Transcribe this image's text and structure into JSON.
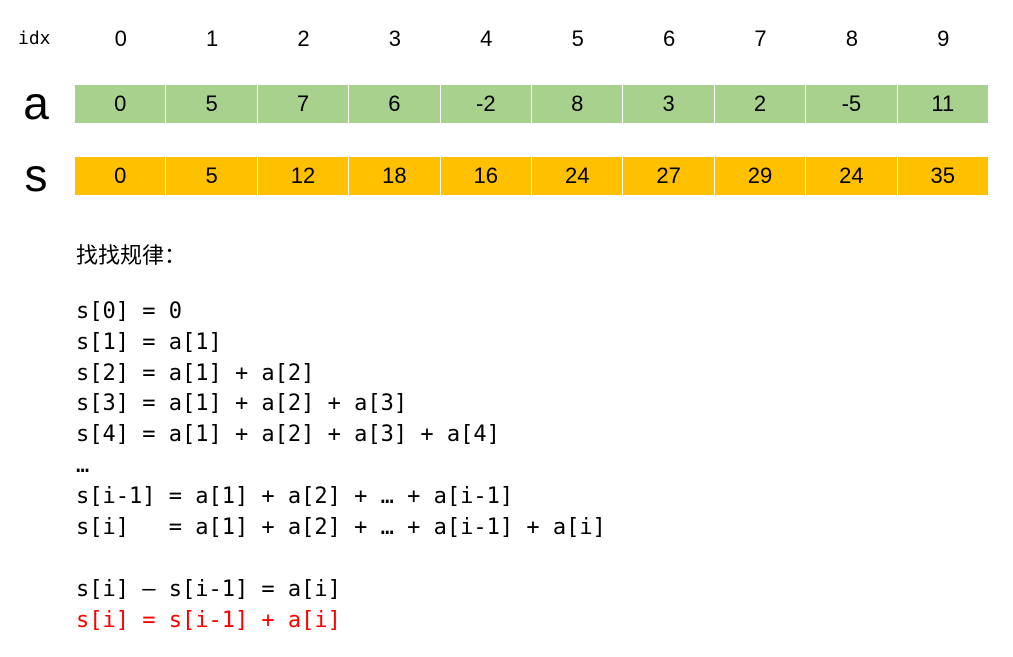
{
  "header": {
    "label": "idx",
    "indices": [
      0,
      1,
      2,
      3,
      4,
      5,
      6,
      7,
      8,
      9
    ]
  },
  "rows": [
    {
      "name": "a",
      "color": "#a9d18e",
      "values": [
        0,
        5,
        7,
        6,
        -2,
        8,
        3,
        2,
        -5,
        11
      ]
    },
    {
      "name": "s",
      "color": "#ffc000",
      "values": [
        0,
        5,
        12,
        18,
        16,
        24,
        27,
        29,
        24,
        35
      ]
    }
  ],
  "notes": {
    "title": "找找规律：",
    "lines": [
      "s[0] = 0",
      "s[1] = a[1]",
      "s[2] = a[1] + a[2]",
      "s[3] = a[1] + a[2] + a[3]",
      "s[4] = a[1] + a[2] + a[3] + a[4]",
      "…",
      "s[i-1] = a[1] + a[2] + … + a[i-1]",
      "s[i]   = a[1] + a[2] + … + a[i-1] + a[i]"
    ],
    "conclusion": [
      "s[i] – s[i-1] = a[i]",
      "s[i] = s[i-1] + a[i]"
    ],
    "highlight_color": "#ff0000"
  }
}
